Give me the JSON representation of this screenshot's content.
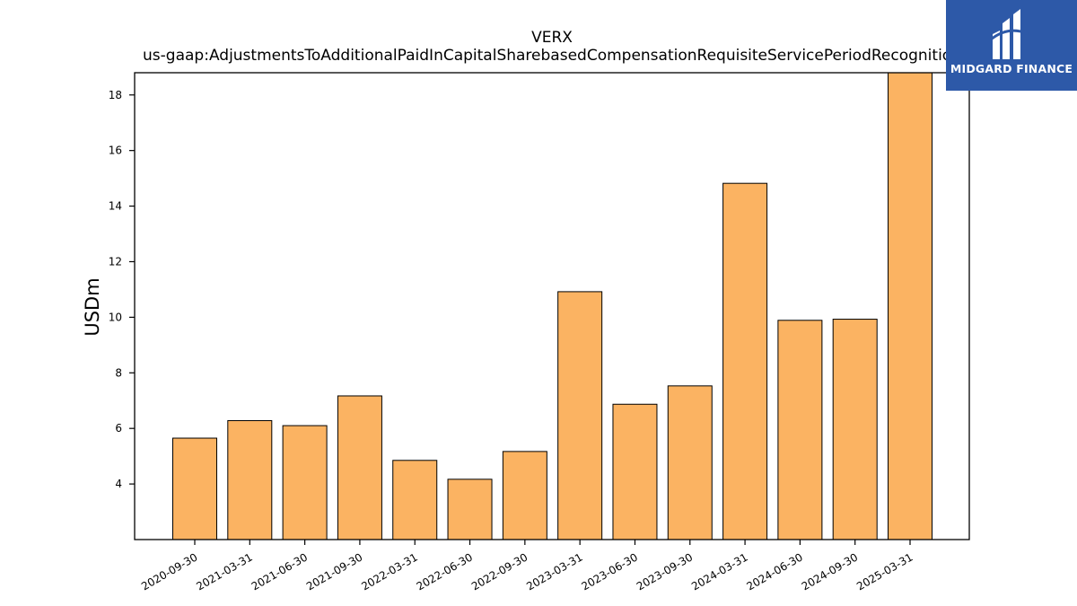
{
  "logo": {
    "text": "MIDGARD FINANCE",
    "icon": "midgard-m-logo-icon",
    "background": "#2d59a8"
  },
  "chart_data": {
    "type": "bar",
    "title": "VERX",
    "subtitle": "us-gaap:AdjustmentsToAdditionalPaidInCapitalSharebasedCompensationRequisiteServicePeriodRecognition",
    "xlabel": "",
    "ylabel": "USDm",
    "categories": [
      "2020-09-30",
      "2021-03-31",
      "2021-06-30",
      "2021-09-30",
      "2022-03-31",
      "2022-06-30",
      "2022-09-30",
      "2023-03-31",
      "2023-06-30",
      "2023-09-30",
      "2024-03-31",
      "2024-06-30",
      "2024-09-30",
      "2025-03-31"
    ],
    "values": [
      5.65,
      6.28,
      6.1,
      7.17,
      4.85,
      4.17,
      5.17,
      10.92,
      6.87,
      7.53,
      14.82,
      9.89,
      9.93,
      18.8
    ],
    "ylim": [
      2.0,
      18.8
    ],
    "yticks": [
      4,
      6,
      8,
      10,
      12,
      14,
      16,
      18
    ],
    "bar_color": "#fbb362",
    "edge_color": "#000000",
    "grid": false
  }
}
